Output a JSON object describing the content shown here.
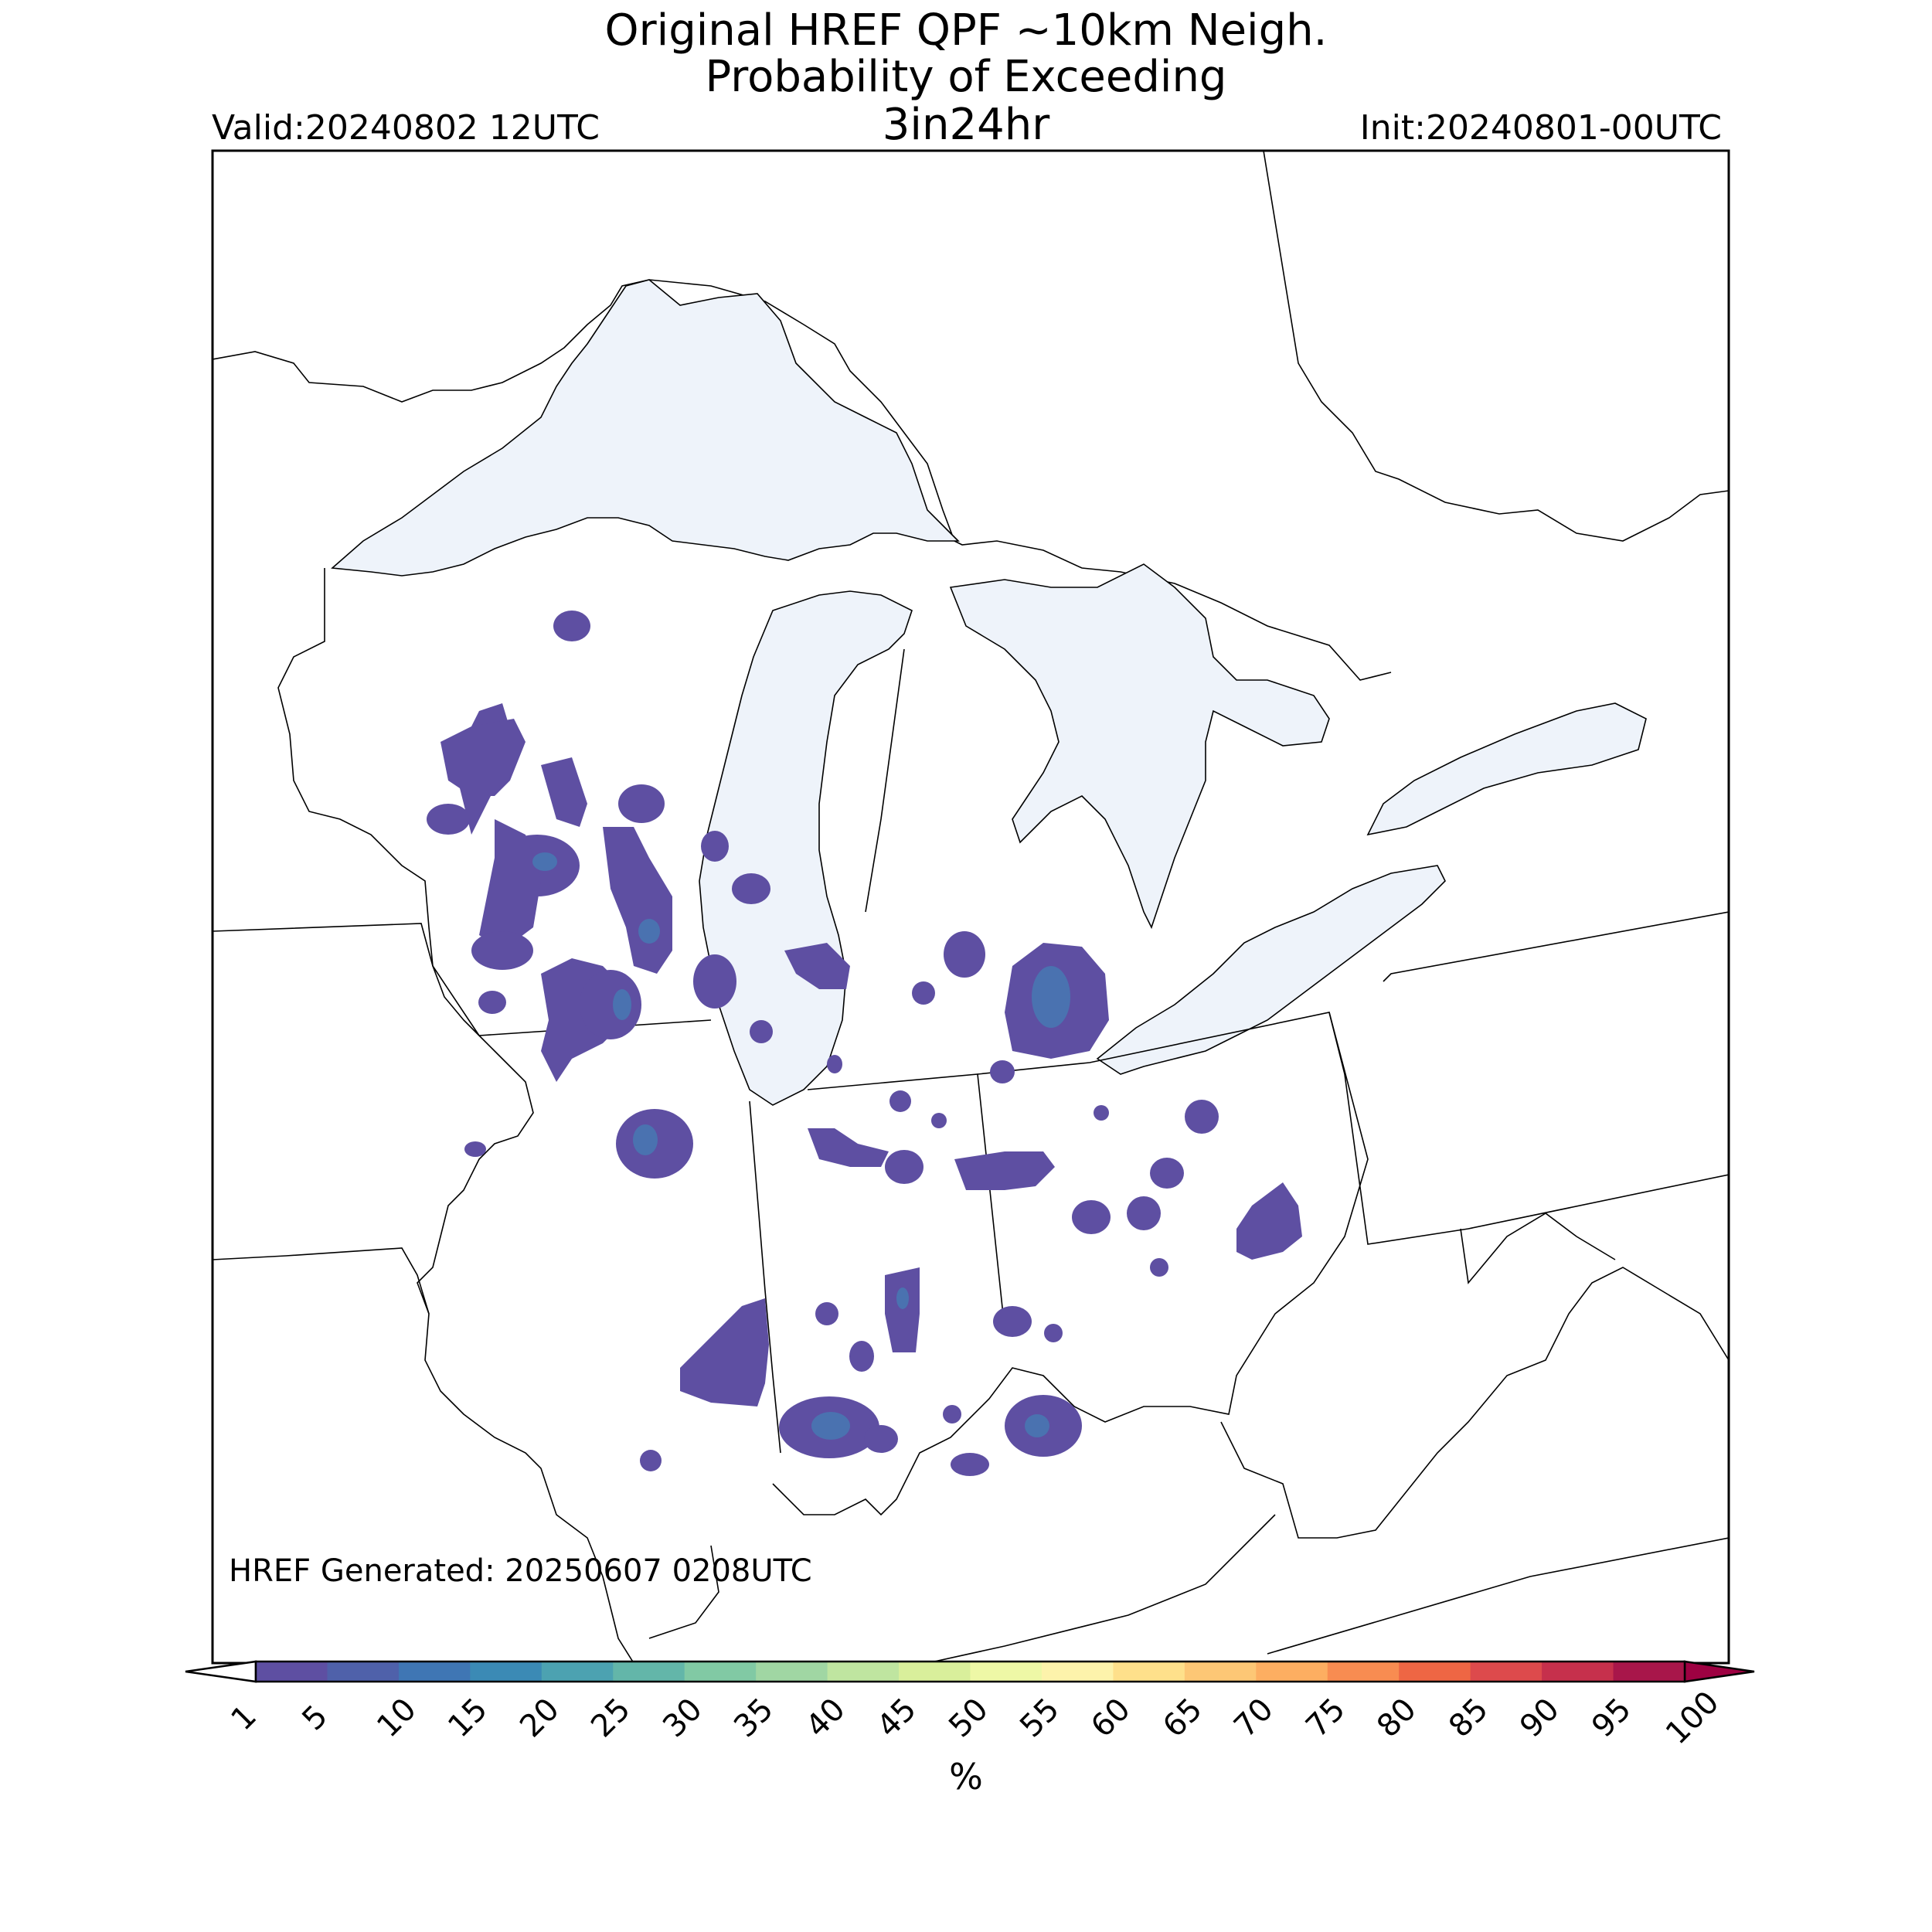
{
  "title": {
    "line1": "Original HREF QPF ~10km Neigh.",
    "line2": "Probability of Exceeding",
    "line3": "3in24hr"
  },
  "valid_label": "Valid:20240802 12UTC",
  "init_label": "Init:20240801-00UTC",
  "generated_label": "HREF Generated: 20250607 0208UTC",
  "colorbar": {
    "unit": "%",
    "ticks": [
      "1",
      "5",
      "10",
      "15",
      "20",
      "25",
      "30",
      "35",
      "40",
      "45",
      "50",
      "55",
      "60",
      "65",
      "70",
      "75",
      "80",
      "85",
      "90",
      "95",
      "100"
    ],
    "colors": [
      "#5e4fa2",
      "#4f61aa",
      "#3f76b4",
      "#3b8ab5",
      "#4ca2b1",
      "#63b6a9",
      "#81c9a4",
      "#a0d6a3",
      "#bfe5a0",
      "#d9ef9b",
      "#eef8a6",
      "#fdf3ab",
      "#fee08b",
      "#fdc775",
      "#fdae61",
      "#f88c51",
      "#ee6644",
      "#dd4a4c",
      "#c6304c",
      "#a8164a",
      "#9e0142"
    ]
  },
  "colors": {
    "lake_fill": "#eef3fa",
    "precip_low": "#5e4fa2",
    "precip_mid": "#4a72b0",
    "border": "#000000"
  }
}
